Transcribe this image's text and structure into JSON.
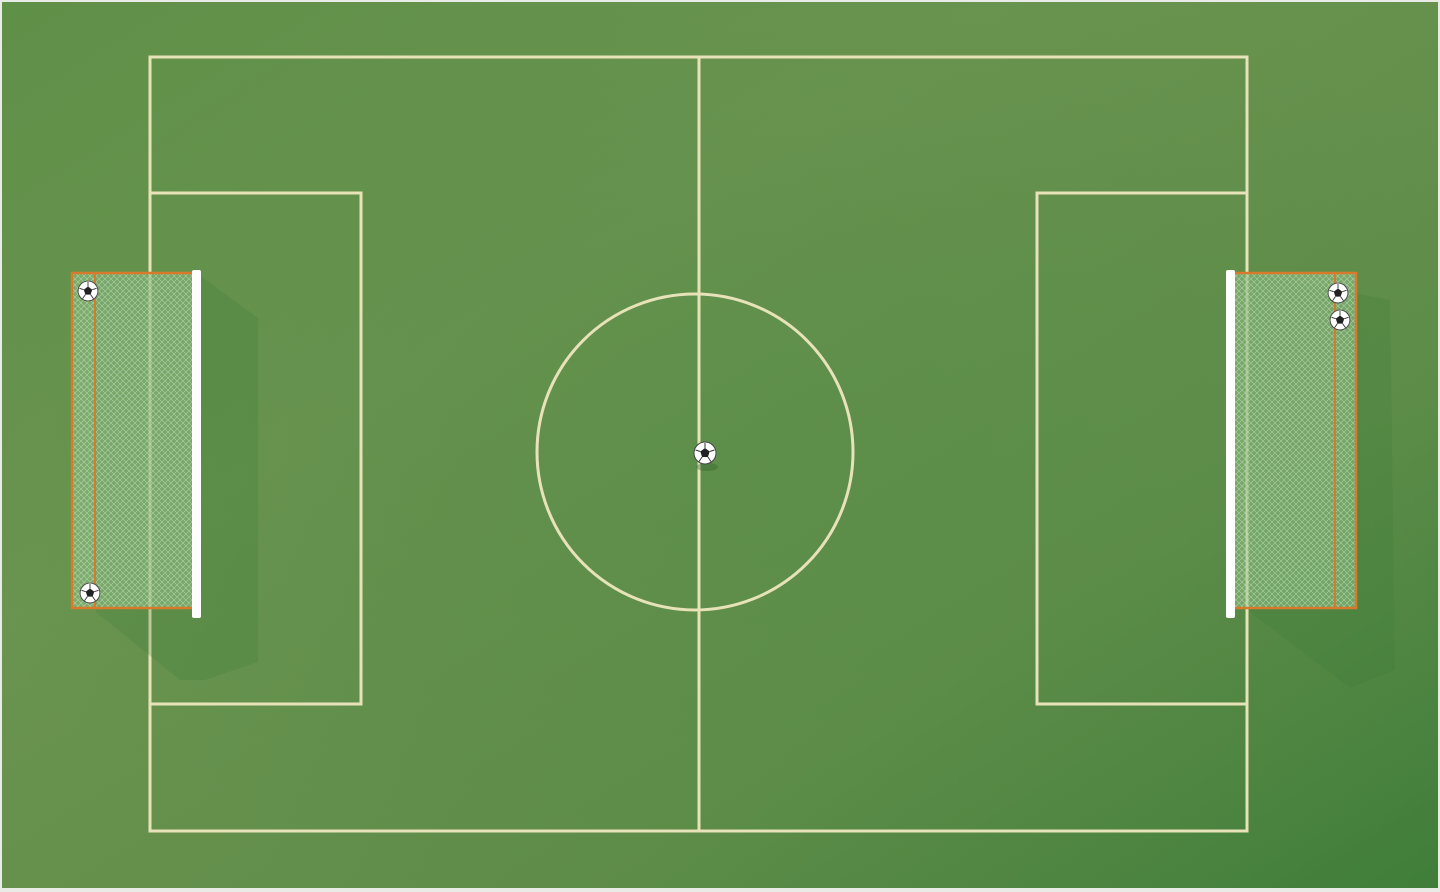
{
  "game": {
    "view": "top-down",
    "field_type": "soccer pitch",
    "state": "ball placed on center spot"
  },
  "colors": {
    "grass_light": "#6a9450",
    "grass_mid": "#5c8a45",
    "grass_dark": "#3f7e3a",
    "line": "#e8e2b8",
    "goal_post": "#ffffff",
    "goal_frame": "#d87a2c",
    "net": "#9fc79a",
    "frame": "#e9ece6"
  },
  "icons": {
    "ball": "soccer-ball-icon",
    "corner_balls": "soccer-ball-icon"
  }
}
